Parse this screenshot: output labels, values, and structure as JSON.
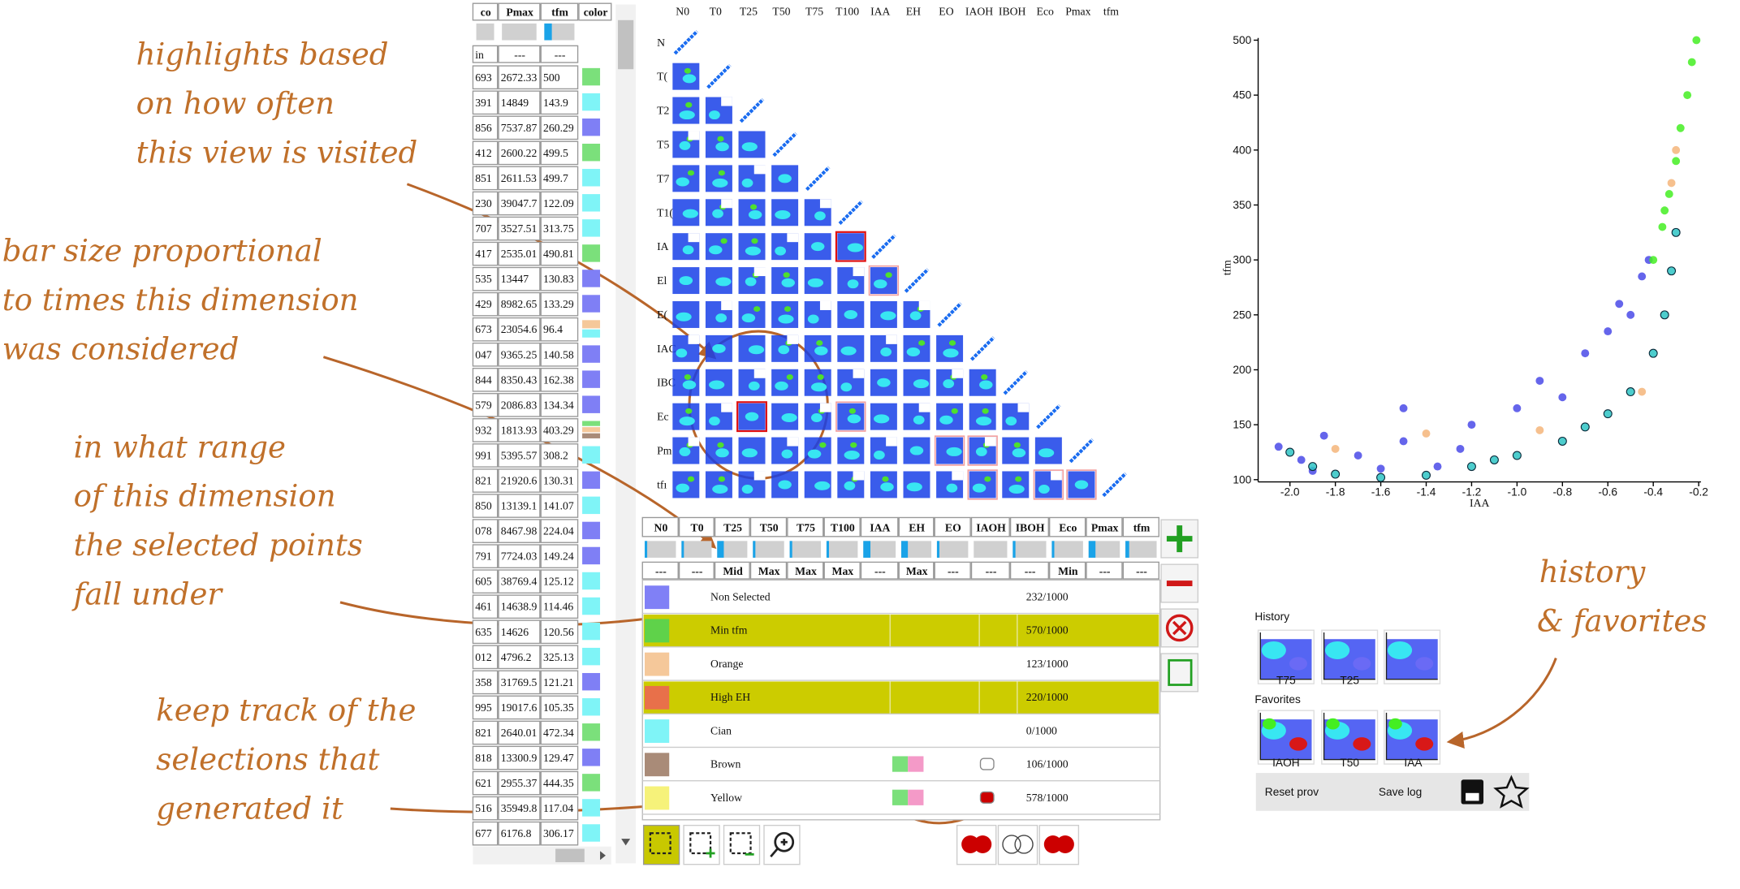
{
  "annotations": [
    {
      "lines": [
        "highlights based",
        "on how often",
        "this view is visited"
      ]
    },
    {
      "lines": [
        "bar size proportional",
        "to times this dimension",
        "was considered"
      ]
    },
    {
      "lines": [
        "in what range",
        "of this dimension",
        "the selected points",
        "fall under"
      ]
    },
    {
      "lines": [
        "keep track of the",
        "selections that",
        "generated  it"
      ]
    },
    {
      "lines": [
        "history",
        "& favorites"
      ]
    }
  ],
  "table": {
    "headers": [
      "co",
      "Pmax",
      "tfm",
      "color"
    ],
    "usage": [
      0,
      0,
      0.25
    ],
    "filters": [
      "in",
      "---",
      "---"
    ],
    "rows": [
      {
        "cells": [
          "693",
          "2672.33",
          "500"
        ],
        "colors": [
          "#7be07b"
        ]
      },
      {
        "cells": [
          "391",
          "14849",
          "143.9"
        ],
        "colors": [
          "#7ff4f7"
        ]
      },
      {
        "cells": [
          "856",
          "7537.87",
          "260.29"
        ],
        "colors": [
          "#7f7ff5"
        ]
      },
      {
        "cells": [
          "412",
          "2600.22",
          "499.5"
        ],
        "colors": [
          "#7be07b"
        ]
      },
      {
        "cells": [
          "851",
          "2611.53",
          "499.7"
        ],
        "colors": [
          "#7ff4f7"
        ]
      },
      {
        "cells": [
          "230",
          "39047.7",
          "122.09"
        ],
        "colors": [
          "#7ff4f7"
        ]
      },
      {
        "cells": [
          "707",
          "3527.51",
          "313.75"
        ],
        "colors": [
          "#7ff4f7"
        ]
      },
      {
        "cells": [
          "417",
          "2535.01",
          "490.81"
        ],
        "colors": [
          "#7be07b"
        ]
      },
      {
        "cells": [
          "535",
          "13447",
          "130.83"
        ],
        "colors": [
          "#7f7ff5"
        ]
      },
      {
        "cells": [
          "429",
          "8982.65",
          "133.29"
        ],
        "colors": [
          "#7f7ff5"
        ]
      },
      {
        "cells": [
          "673",
          "23054.6",
          "96.4"
        ],
        "colors": [
          "#f5c89a",
          "#7ff4f7"
        ]
      },
      {
        "cells": [
          "047",
          "9365.25",
          "140.58"
        ],
        "colors": [
          "#7f7ff5"
        ]
      },
      {
        "cells": [
          "844",
          "8350.43",
          "162.38"
        ],
        "colors": [
          "#7f7ff5"
        ]
      },
      {
        "cells": [
          "579",
          "2086.83",
          "134.34"
        ],
        "colors": [
          "#7f7ff5"
        ]
      },
      {
        "cells": [
          "932",
          "1813.93",
          "403.29"
        ],
        "colors": [
          "#7be07b",
          "#f5c89a",
          "#a98b78"
        ]
      },
      {
        "cells": [
          "991",
          "5395.57",
          "308.2"
        ],
        "colors": [
          "#7ff4f7"
        ]
      },
      {
        "cells": [
          "821",
          "21920.6",
          "130.31"
        ],
        "colors": [
          "#7f7ff5"
        ]
      },
      {
        "cells": [
          "850",
          "13139.1",
          "141.07"
        ],
        "colors": [
          "#7ff4f7"
        ]
      },
      {
        "cells": [
          "078",
          "8467.98",
          "224.04"
        ],
        "colors": [
          "#7f7ff5"
        ]
      },
      {
        "cells": [
          "791",
          "7724.03",
          "149.24"
        ],
        "colors": [
          "#7f7ff5"
        ]
      },
      {
        "cells": [
          "605",
          "38769.4",
          "125.12"
        ],
        "colors": [
          "#7ff4f7"
        ]
      },
      {
        "cells": [
          "461",
          "14638.9",
          "114.46"
        ],
        "colors": [
          "#7ff4f7"
        ]
      },
      {
        "cells": [
          "635",
          "14626",
          "120.56"
        ],
        "colors": [
          "#7ff4f7"
        ]
      },
      {
        "cells": [
          "012",
          "4796.2",
          "325.13"
        ],
        "colors": [
          "#7ff4f7"
        ]
      },
      {
        "cells": [
          "358",
          "31769.5",
          "121.21"
        ],
        "colors": [
          "#7f7ff5"
        ]
      },
      {
        "cells": [
          "995",
          "19017.6",
          "105.35"
        ],
        "colors": [
          "#7ff4f7"
        ]
      },
      {
        "cells": [
          "821",
          "2640.01",
          "472.34"
        ],
        "colors": [
          "#7be07b"
        ]
      },
      {
        "cells": [
          "818",
          "13300.9",
          "129.47"
        ],
        "colors": [
          "#7f7ff5"
        ]
      },
      {
        "cells": [
          "621",
          "2955.37",
          "444.35"
        ],
        "colors": [
          "#7be07b"
        ]
      },
      {
        "cells": [
          "516",
          "35949.8",
          "117.04"
        ],
        "colors": [
          "#7ff4f7"
        ]
      },
      {
        "cells": [
          "677",
          "6176.8",
          "306.17"
        ],
        "colors": [
          "#7ff4f7"
        ]
      }
    ]
  },
  "matrix": {
    "columns": [
      "N0",
      "T0",
      "T25",
      "T50",
      "T75",
      "T100",
      "IAA",
      "EH",
      "EO",
      "IAOH",
      "IBOH",
      "Eco",
      "Pmax",
      "tfm"
    ],
    "rows": [
      "N",
      "T(",
      "T2",
      "T5",
      "T7",
      "T1(",
      "IA",
      "El",
      "E(",
      "IAC",
      "IBC",
      "Ec",
      "Pm",
      "tfı"
    ]
  },
  "selection_panel": {
    "columns": [
      "N0",
      "T0",
      "T25",
      "T50",
      "T75",
      "T100",
      "IAA",
      "EH",
      "EO",
      "IAOH",
      "IBOH",
      "Eco",
      "Pmax",
      "tfm"
    ],
    "usage": [
      0.08,
      0.08,
      0.22,
      0.08,
      0.08,
      0.08,
      0.22,
      0.22,
      0.08,
      0,
      0.08,
      0.08,
      0.22,
      0.12
    ],
    "ranges": [
      "---",
      "---",
      "Mid",
      "Max",
      "Max",
      "Max",
      "---",
      "Max",
      "---",
      "---",
      "---",
      "Min",
      "---",
      "---"
    ],
    "selections": [
      {
        "name": "Non Selected",
        "count": "232/1000",
        "color": "#8080f6",
        "highlighted": false,
        "history": false
      },
      {
        "name": "Min tfm",
        "count": "570/1000",
        "color": "#5fd24a",
        "highlighted": true,
        "history": false
      },
      {
        "name": "Orange",
        "count": "123/1000",
        "color": "#f5c89a",
        "highlighted": false,
        "history": false
      },
      {
        "name": "High EH",
        "count": "220/1000",
        "color": "#e8704a",
        "highlighted": true,
        "history": false
      },
      {
        "name": "Cian",
        "count": "0/1000",
        "color": "#7ff4f7",
        "highlighted": false,
        "history": false
      },
      {
        "name": "Brown",
        "count": "106/1000",
        "color": "#a98b78",
        "highlighted": false,
        "history": true
      },
      {
        "name": "Yellow",
        "count": "578/1000",
        "color": "#f6f27a",
        "highlighted": false,
        "history": true
      }
    ]
  },
  "chart_data": {
    "type": "scatter",
    "x_label": "IAA",
    "y_label": "tfm",
    "xlim": [
      -2.14,
      -0.19
    ],
    "ylim": [
      98,
      502
    ],
    "xticks": [
      {
        "value": -2,
        "label": "-2.0"
      },
      {
        "value": -1.8,
        "label": "-1.8"
      },
      {
        "value": -1.6,
        "label": "-1.6"
      },
      {
        "value": -1.4,
        "label": "-1.4"
      },
      {
        "value": -1.2,
        "label": "-1.2"
      },
      {
        "value": -1,
        "label": "-1.0"
      },
      {
        "value": -0.8,
        "label": "-0.8"
      },
      {
        "value": -0.6,
        "label": "-0.6"
      },
      {
        "value": -0.4,
        "label": "-0.4"
      },
      {
        "value": -0.2,
        "label": "-0.2"
      }
    ],
    "yticks": [
      100,
      150,
      200,
      250,
      300,
      350,
      400,
      450,
      500
    ],
    "series": [
      {
        "color": "#4a4ae8",
        "stroke": "none",
        "x": [
          -2.05,
          -1.95,
          -1.85,
          -1.7,
          -1.6,
          -1.5,
          -1.35,
          -1.2,
          -1.0,
          -0.9,
          -0.8,
          -0.7,
          -0.6,
          -0.55,
          -0.5,
          -0.45,
          -0.42,
          -1.9,
          -1.5,
          -1.25
        ],
        "values": [
          130,
          118,
          140,
          122,
          110,
          135,
          112,
          150,
          165,
          190,
          175,
          215,
          235,
          260,
          250,
          285,
          300,
          108,
          165,
          128
        ]
      },
      {
        "color": "#f5b57a",
        "stroke": "none",
        "x": [
          -1.8,
          -1.4,
          -0.9,
          -0.45,
          -0.3,
          -0.32
        ],
        "values": [
          128,
          142,
          145,
          180,
          400,
          370
        ]
      },
      {
        "color": "#2ec4c4",
        "stroke": "#0a2a3a",
        "x": [
          -2.0,
          -1.9,
          -1.8,
          -1.6,
          -1.4,
          -1.2,
          -1.0,
          -0.8,
          -0.6,
          -0.5,
          -0.4,
          -0.35,
          -0.32,
          -0.3,
          -1.1,
          -0.7
        ],
        "values": [
          125,
          112,
          105,
          102,
          104,
          112,
          122,
          135,
          160,
          180,
          215,
          250,
          290,
          325,
          118,
          148
        ]
      },
      {
        "color": "#44ee22",
        "stroke": "none",
        "x": [
          -0.4,
          -0.36,
          -0.33,
          -0.3,
          -0.28,
          -0.25,
          -0.23,
          -0.21,
          -0.35
        ],
        "values": [
          300,
          330,
          360,
          390,
          420,
          450,
          480,
          500,
          345
        ]
      }
    ]
  },
  "history": {
    "title": "History",
    "labels": [
      "T75",
      "T25"
    ],
    "favorites_title": "Favorites",
    "favorite_labels": [
      "IAOH",
      "T50",
      "IAA"
    ],
    "buttons": [
      "Reset prov",
      "Save log"
    ]
  }
}
